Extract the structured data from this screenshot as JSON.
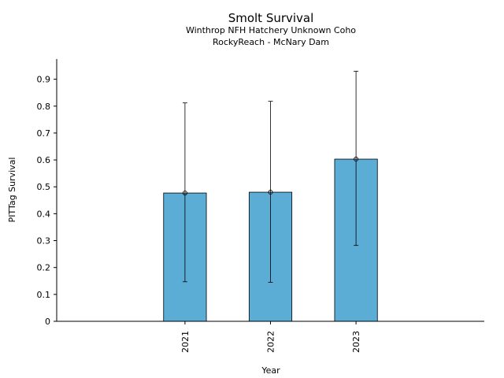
{
  "chart_data": {
    "type": "bar",
    "title": "Smolt Survival",
    "subtitle_lines": [
      "Winthrop NFH Hatchery Unknown Coho",
      "RockyReach - McNary Dam"
    ],
    "xlabel": "Year",
    "ylabel": "PITTag Survival",
    "categories": [
      "2021",
      "2022",
      "2023"
    ],
    "values": [
      0.477,
      0.48,
      0.603
    ],
    "error_lower": [
      0.147,
      0.145,
      0.282
    ],
    "error_upper": [
      0.812,
      0.818,
      0.93
    ],
    "ylim": [
      0,
      0.975
    ],
    "yticks": [
      0,
      0.1,
      0.2,
      0.3,
      0.4,
      0.5,
      0.6,
      0.7,
      0.8,
      0.9
    ],
    "ytick_labels": [
      "0",
      "0.1",
      "0.2",
      "0.3",
      "0.4",
      "0.5",
      "0.6",
      "0.7",
      "0.8",
      "0.9"
    ],
    "grid": false,
    "bar_color": "#5badd6",
    "edge_color": "#000000"
  }
}
